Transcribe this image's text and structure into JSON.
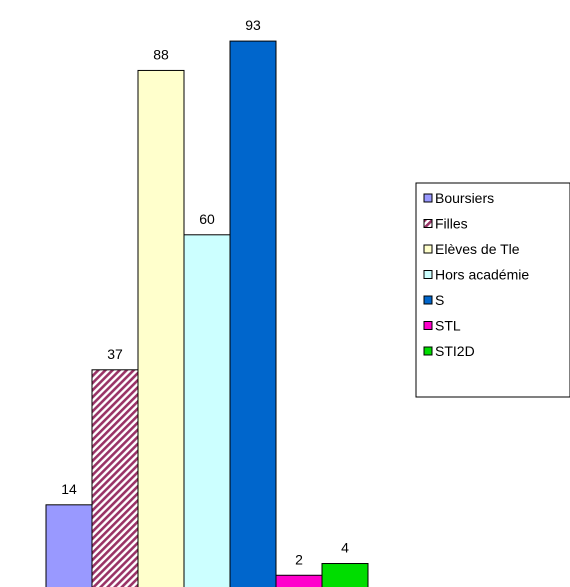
{
  "chart_data": {
    "type": "bar",
    "title": "",
    "xlabel": "",
    "ylabel": "",
    "ylim": [
      0,
      100
    ],
    "grid": false,
    "legend_position": "right",
    "categories": [
      "Boursiers",
      "Filles",
      "Elèves de Tle",
      "Hors académie",
      "S",
      "STL",
      "STI2D"
    ],
    "series": [
      {
        "name": "Boursiers",
        "value": 14,
        "label": "14",
        "color": "#9999ff",
        "pattern": "solid"
      },
      {
        "name": "Filles",
        "value": 37,
        "label": "37",
        "color": "#993366",
        "pattern": "diagonal-hatch"
      },
      {
        "name": "Elèves de Tle",
        "value": 88,
        "label": "88",
        "color": "#ffffcc",
        "pattern": "solid"
      },
      {
        "name": "Hors académie",
        "value": 60,
        "label": "60",
        "color": "#ccffff",
        "pattern": "solid"
      },
      {
        "name": "S",
        "value": 93,
        "label": "93",
        "color": "#0066cc",
        "pattern": "solid"
      },
      {
        "name": "STL",
        "value": 2,
        "label": "2",
        "color": "#ff00cc",
        "pattern": "solid"
      },
      {
        "name": "STI2D",
        "value": 4,
        "label": "4",
        "color": "#00dd00",
        "pattern": "solid"
      }
    ]
  }
}
